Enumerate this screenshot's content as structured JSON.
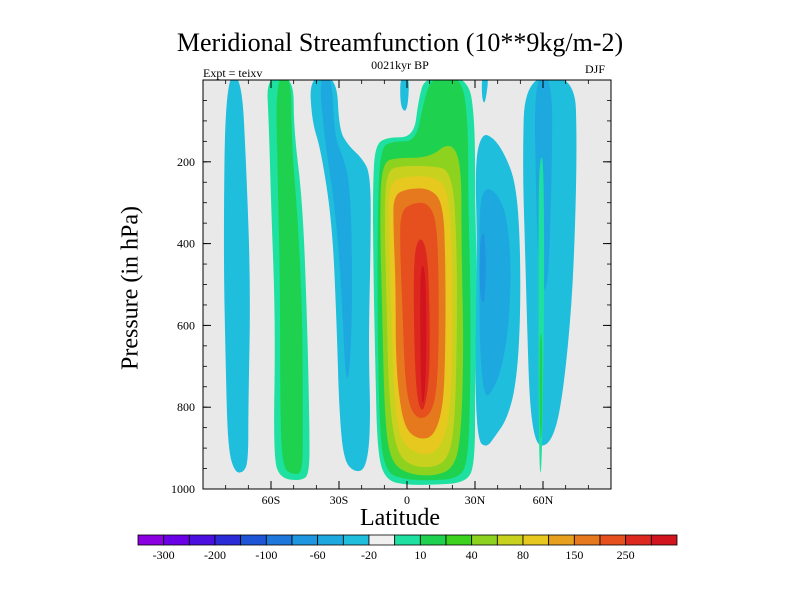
{
  "chart_data": {
    "type": "heatmap",
    "title": "Meridional Streamfunction (10**9kg/m-2)",
    "subtitle_left": "Expt = teixv",
    "subtitle_center": "0021kyr BP",
    "subtitle_right": "DJF",
    "xlabel": "Latitude",
    "ylabel": "Pressure (in hPa)",
    "xlim": [
      -90,
      90
    ],
    "ylim": [
      1000,
      0
    ],
    "xticks": [
      {
        "value": -60,
        "label": "60S"
      },
      {
        "value": -30,
        "label": "30S"
      },
      {
        "value": 0,
        "label": "0"
      },
      {
        "value": 30,
        "label": "30N"
      },
      {
        "value": 60,
        "label": "60N"
      }
    ],
    "yticks": [
      {
        "value": 200,
        "label": "200"
      },
      {
        "value": 400,
        "label": "400"
      },
      {
        "value": 600,
        "label": "600"
      },
      {
        "value": 800,
        "label": "800"
      },
      {
        "value": 1000,
        "label": "1000"
      }
    ],
    "colorbar": {
      "colors": [
        "#8a00e0",
        "#6a00e6",
        "#4b10e0",
        "#2b2bd8",
        "#1e55d6",
        "#1e78dc",
        "#1e96e0",
        "#1ea8e0",
        "#1ebedc",
        "#f0f0f0",
        "#1ee0a0",
        "#1ed250",
        "#3cd21e",
        "#8cd21e",
        "#c8d21e",
        "#e6c81e",
        "#e6a01e",
        "#e6781e",
        "#e64f1e",
        "#dc281e",
        "#d2141e"
      ],
      "labels": [
        {
          "index": 1,
          "text": "-300"
        },
        {
          "index": 3,
          "text": "-200"
        },
        {
          "index": 5,
          "text": "-100"
        },
        {
          "index": 7,
          "text": "-60"
        },
        {
          "index": 9,
          "text": "-20"
        },
        {
          "index": 11,
          "text": "10"
        },
        {
          "index": 13,
          "text": "40"
        },
        {
          "index": 15,
          "text": "80"
        },
        {
          "index": 17,
          "text": "150"
        },
        {
          "index": 19,
          "text": "250"
        }
      ]
    },
    "features": [
      {
        "name": "NH Hadley cell (positive)",
        "lat_range": [
          -12,
          30
        ],
        "p_range": [
          50,
          985
        ],
        "peak_value": 300,
        "peak_lat": 7,
        "peak_p": 650
      },
      {
        "name": "SH band (~40S) positive",
        "lat_range": [
          -55,
          -35
        ],
        "p_range": [
          0,
          975
        ],
        "max_value": 40
      },
      {
        "name": "SH band (~70S) negative",
        "lat_range": [
          -80,
          -65
        ],
        "p_range": [
          0,
          960
        ],
        "min_value": -20
      },
      {
        "name": "SH band (~20S) negative",
        "lat_range": [
          -35,
          -15
        ],
        "p_range": [
          0,
          960
        ],
        "min_value": -20
      },
      {
        "name": "NH band (~35N) negative",
        "lat_range": [
          30,
          50
        ],
        "p_range": [
          130,
          900
        ],
        "min_value": -60
      },
      {
        "name": "NH band (~60N) negative",
        "lat_range": [
          50,
          75
        ],
        "p_range": [
          0,
          900
        ],
        "min_value": -60
      }
    ]
  }
}
